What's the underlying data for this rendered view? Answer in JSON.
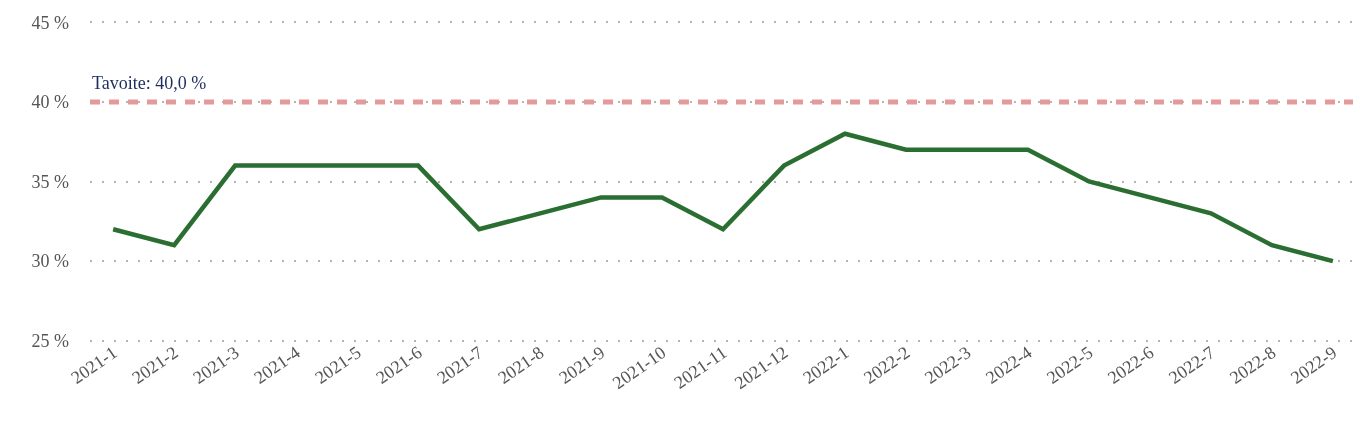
{
  "chart_data": {
    "type": "line",
    "categories": [
      "2021-1",
      "2021-2",
      "2021-3",
      "2021-4",
      "2021-5",
      "2021-6",
      "2021-7",
      "2021-8",
      "2021-9",
      "2021-10",
      "2021-11",
      "2021-12",
      "2022-1",
      "2022-2",
      "2022-3",
      "2022-4",
      "2022-5",
      "2022-6",
      "2022-7",
      "2022-8",
      "2022-9"
    ],
    "series": [
      {
        "color": "#2a6e32",
        "values": [
          32,
          31,
          36,
          36,
          36,
          36,
          32,
          33,
          34,
          34,
          32,
          36,
          38,
          37,
          37,
          37,
          35,
          34,
          33,
          31,
          30
        ]
      }
    ],
    "ylim": [
      25,
      45
    ],
    "yticks": [
      {
        "value": 25,
        "label": "25 %"
      },
      {
        "value": 30,
        "label": "30 %"
      },
      {
        "value": 35,
        "label": "35 %"
      },
      {
        "value": 40,
        "label": "40 %"
      },
      {
        "value": 45,
        "label": "45 %"
      }
    ],
    "grid": "y",
    "line_style": "solid",
    "ref_lines": [
      {
        "axis": "y",
        "value": 40,
        "label": "Tavoite: 40,0 %",
        "color": "#e39a9a",
        "line_style": "dashed"
      }
    ]
  }
}
